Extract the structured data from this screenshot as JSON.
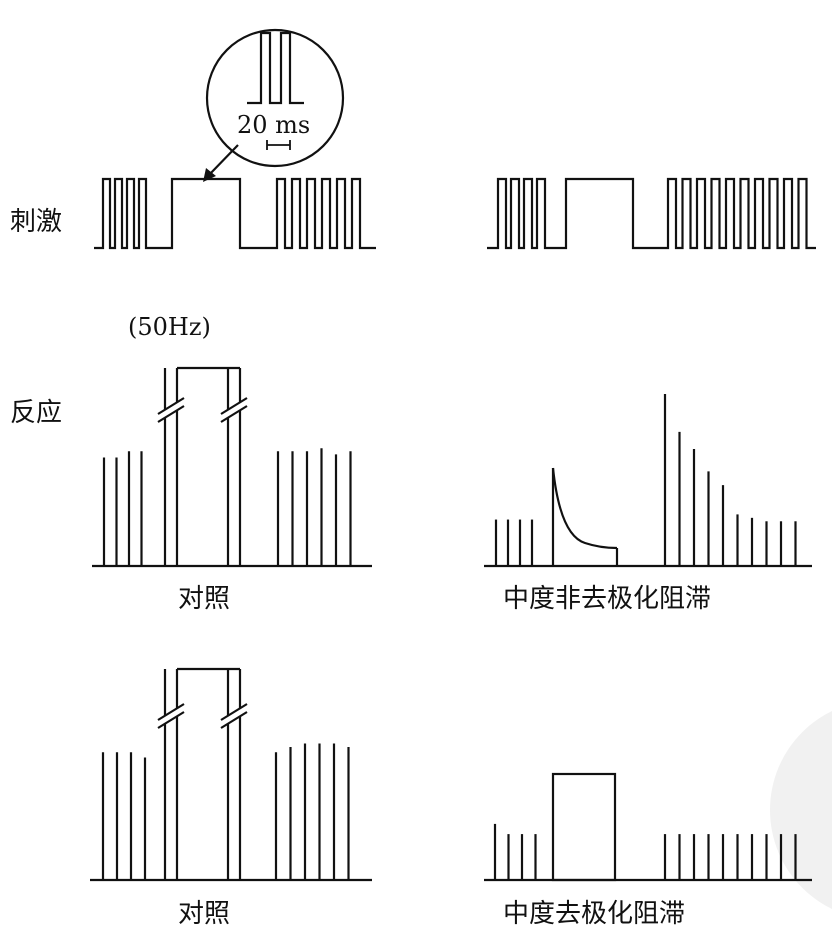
{
  "labels": {
    "stimulus": "刺激",
    "response": "反应",
    "frequency": "(50Hz)",
    "inset_scale": "20 ms",
    "panel_control_1": "对照",
    "panel_nondepolarizing": "中度非去极化阻滞",
    "panel_control_2": "对照",
    "panel_depolarizing": "中度去极化阻滞"
  },
  "chart_data": {
    "type": "diagram",
    "panels": [
      {
        "name": "对照",
        "stimulus": [
          "4 twitch pulses",
          "tetanic train 50Hz",
          "6 twitch pulses"
        ],
        "twitch_before": [
          0.7,
          0.7,
          0.74,
          0.74
        ],
        "tetanus": "sustained (off-scale)",
        "twitch_after": [
          0.74,
          0.74,
          0.74,
          0.76,
          0.72,
          0.74
        ]
      },
      {
        "name": "中度非去极化阻滞",
        "stimulus": [
          "4 twitch pulses",
          "tetanic train 50Hz",
          "10 twitch pulses"
        ],
        "twitch_before": [
          0.27,
          0.27,
          0.27,
          0.27
        ],
        "tetanus": "fade",
        "twitch_after": [
          1.0,
          0.78,
          0.68,
          0.55,
          0.47,
          0.3,
          0.28,
          0.26,
          0.26,
          0.26
        ]
      },
      {
        "name": "对照",
        "twitch_before": [
          0.73,
          0.73,
          0.73,
          0.7
        ],
        "tetanus": "sustained (off-scale)",
        "twitch_after": [
          0.73,
          0.76,
          0.78,
          0.78,
          0.78,
          0.76
        ]
      },
      {
        "name": "中度去极化阻滞",
        "twitch_before": [
          0.55,
          0.45,
          0.45,
          0.45
        ],
        "tetanus": "sustained, no fade",
        "twitch_after": [
          0.45,
          0.45,
          0.45,
          0.45,
          0.45,
          0.45,
          0.45,
          0.45,
          0.45,
          0.45
        ]
      }
    ]
  }
}
